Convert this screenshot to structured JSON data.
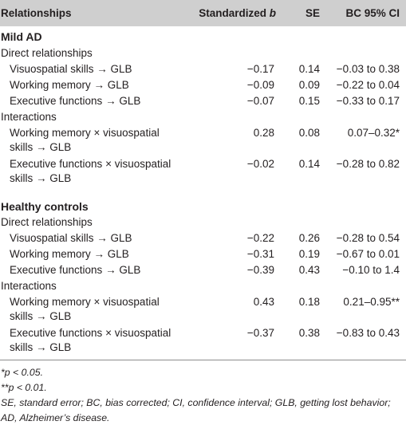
{
  "header": {
    "relationships": "Relationships",
    "standardized_prefix": "Standardized ",
    "standardized_b": "b",
    "se": "SE",
    "ci": "BC 95% CI"
  },
  "groups": [
    {
      "name": "Mild AD",
      "sections": [
        {
          "title": "Direct relationships",
          "rows": [
            {
              "label": "Visuospatial skills → GLB",
              "b": "−0.17",
              "se": "0.14",
              "ci": "−0.03 to 0.38"
            },
            {
              "label": "Working memory → GLB",
              "b": "−0.09",
              "se": "0.09",
              "ci": "−0.22 to 0.04"
            },
            {
              "label": "Executive functions → GLB",
              "b": "−0.07",
              "se": "0.15",
              "ci": "−0.33 to 0.17"
            }
          ]
        },
        {
          "title": "Interactions",
          "rows": [
            {
              "label1": "Working memory × visuospatial",
              "label2": "skills → GLB",
              "b": "0.28",
              "se": "0.08",
              "ci": "0.07–0.32*"
            },
            {
              "label1": "Executive functions × visuospatial",
              "label2": "skills → GLB",
              "b": "−0.02",
              "se": "0.14",
              "ci": "−0.28 to 0.82"
            }
          ]
        }
      ]
    },
    {
      "name": "Healthy controls",
      "sections": [
        {
          "title": "Direct relationships",
          "rows": [
            {
              "label": "Visuospatial skills → GLB",
              "b": "−0.22",
              "se": "0.26",
              "ci": "−0.28 to 0.54"
            },
            {
              "label": "Working memory → GLB",
              "b": "−0.31",
              "se": "0.19",
              "ci": "−0.67 to 0.01"
            },
            {
              "label": "Executive functions → GLB",
              "b": "−0.39",
              "se": "0.43",
              "ci": "−0.10 to 1.4"
            }
          ]
        },
        {
          "title": "Interactions",
          "rows": [
            {
              "label1": "Working memory × visuospatial",
              "label2": "skills → GLB",
              "b": "0.43",
              "se": "0.18",
              "ci": "0.21–0.95**"
            },
            {
              "label1": "Executive functions × visuospatial",
              "label2": "skills → GLB",
              "b": "−0.37",
              "se": "0.38",
              "ci": "−0.83 to 0.43"
            }
          ]
        }
      ]
    }
  ],
  "notes": {
    "p05": "*p < 0.05.",
    "p01": "**p < 0.01.",
    "abbrev": "SE, standard error; BC, bias corrected; CI, confidence interval; GLB, getting lost behavior; AD, Alzheimer’s disease."
  }
}
